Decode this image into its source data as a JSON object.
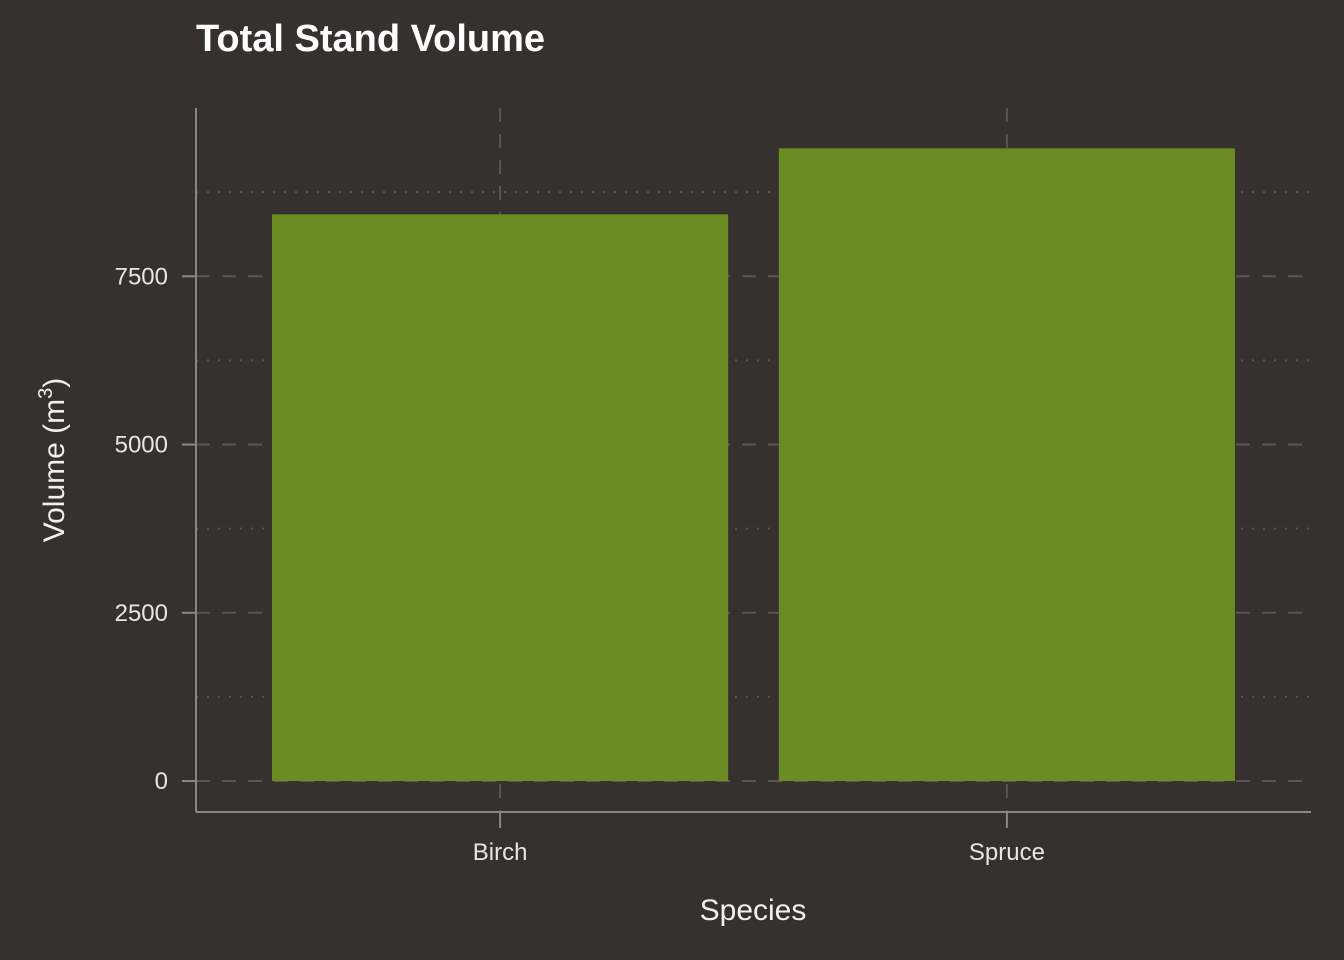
{
  "chart_data": {
    "type": "bar",
    "title": "Total Stand Volume",
    "xlabel": "Species",
    "ylabel": {
      "main": "Volume (m",
      "superscript": "3",
      "close": ")"
    },
    "categories": [
      "Birch",
      "Spruce"
    ],
    "values": [
      8420,
      9400
    ],
    "ylim": [
      -460,
      10000.0
    ],
    "yticks": [
      0,
      2500,
      5000,
      7500
    ],
    "ytick_labels": [
      "0",
      "2500",
      "5000",
      "7500"
    ],
    "grid": true,
    "legend": "none",
    "bar_color": "#6b8c23"
  },
  "colors": {
    "background": "#36312e",
    "axis_line": "#8c8782",
    "grid_major": "#5a5551",
    "grid_minor": "#5a5551"
  }
}
